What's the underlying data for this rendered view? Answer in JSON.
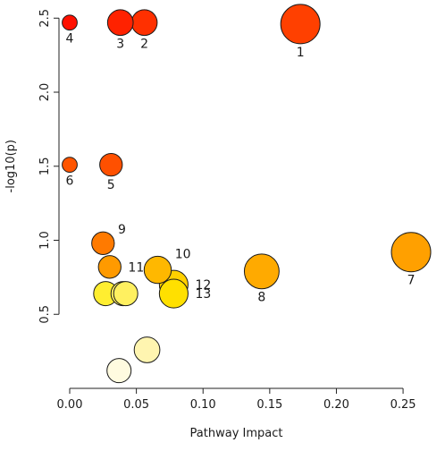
{
  "chart_data": {
    "type": "scatter",
    "xlabel": "Pathway Impact",
    "ylabel": "-log10(p)",
    "xlim": [
      0.0,
      0.26
    ],
    "ylim": [
      0.0,
      2.55
    ],
    "x_ticks": [
      "0.00",
      "0.05",
      "0.10",
      "0.15",
      "0.20",
      "0.25"
    ],
    "x_tick_values": [
      0.0,
      0.05,
      0.1,
      0.15,
      0.2,
      0.25
    ],
    "y_ticks": [
      "0.5",
      "1.0",
      "1.5",
      "2.0",
      "2.5"
    ],
    "y_tick_values": [
      0.5,
      1.0,
      1.5,
      2.0,
      2.5
    ],
    "grid": false,
    "legend": "none",
    "points": [
      {
        "label": "1",
        "x": 0.173,
        "y": 2.46,
        "size": 1.0,
        "color": "#ff4000",
        "label_dx": 0,
        "label_pos": "below"
      },
      {
        "label": "2",
        "x": 0.056,
        "y": 2.47,
        "size": 0.55,
        "color": "#ff3000",
        "label_pos": "below"
      },
      {
        "label": "3",
        "x": 0.038,
        "y": 2.47,
        "size": 0.55,
        "color": "#ff2200",
        "label_pos": "below"
      },
      {
        "label": "4",
        "x": 0.0,
        "y": 2.47,
        "size": 0.2,
        "color": "#ff1000",
        "label_pos": "below"
      },
      {
        "label": "5",
        "x": 0.031,
        "y": 1.51,
        "size": 0.45,
        "color": "#ff5000",
        "label_pos": "below"
      },
      {
        "label": "6",
        "x": 0.0,
        "y": 1.51,
        "size": 0.2,
        "color": "#ff5500",
        "label_pos": "below"
      },
      {
        "label": "7",
        "x": 0.256,
        "y": 0.92,
        "size": 1.0,
        "color": "#ffa000",
        "label_pos": "below"
      },
      {
        "label": "8",
        "x": 0.144,
        "y": 0.79,
        "size": 0.85,
        "color": "#ffaa00",
        "label_pos": "below"
      },
      {
        "label": "9",
        "x": 0.025,
        "y": 0.98,
        "size": 0.45,
        "color": "#ff7a00",
        "label_pos": "upper-right"
      },
      {
        "label": "10",
        "x": 0.066,
        "y": 0.8,
        "size": 0.6,
        "color": "#ffb800",
        "label_pos": "upper-right"
      },
      {
        "label": "11",
        "x": 0.03,
        "y": 0.82,
        "size": 0.45,
        "color": "#ff9a00",
        "label_pos": "right"
      },
      {
        "label": "12",
        "x": 0.078,
        "y": 0.7,
        "size": 0.65,
        "color": "#ffd000",
        "label_pos": "right"
      },
      {
        "label": "13",
        "x": 0.078,
        "y": 0.64,
        "size": 0.65,
        "color": "#ffe000",
        "label_pos": "right"
      },
      {
        "label": "",
        "x": 0.027,
        "y": 0.64,
        "size": 0.5,
        "color": "#ffee30"
      },
      {
        "label": "",
        "x": 0.04,
        "y": 0.64,
        "size": 0.5,
        "color": "#fff060"
      },
      {
        "label": "",
        "x": 0.042,
        "y": 0.64,
        "size": 0.5,
        "color": "#fff060"
      },
      {
        "label": "",
        "x": 0.058,
        "y": 0.26,
        "size": 0.55,
        "color": "#fff5b0"
      },
      {
        "label": "",
        "x": 0.037,
        "y": 0.12,
        "size": 0.5,
        "color": "#fffbe0"
      }
    ]
  }
}
